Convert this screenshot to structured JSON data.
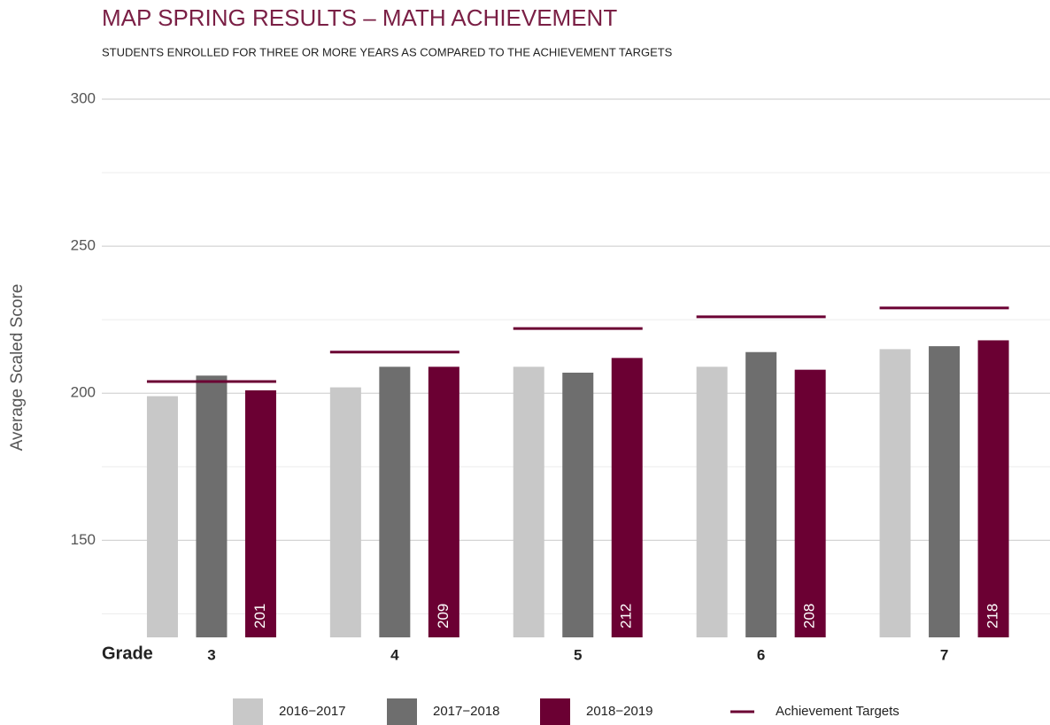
{
  "chart_data": {
    "type": "bar",
    "title": "MAP SPRING RESULTS – MATH ACHIEVEMENT",
    "subtitle": "STUDENTS ENROLLED FOR THREE OR MORE YEARS AS COMPARED TO THE ACHIEVEMENT TARGETS",
    "ylabel": "Average Scaled Score",
    "xlabel": "Grade",
    "categories": [
      "3",
      "4",
      "5",
      "6",
      "7"
    ],
    "series": [
      {
        "name": "2016−2017",
        "color": "#c8c8c8",
        "values": [
          199,
          202,
          209,
          209,
          215
        ]
      },
      {
        "name": "2017−2018",
        "color": "#6e6e6e",
        "values": [
          206,
          209,
          207,
          214,
          216
        ]
      },
      {
        "name": "2018−2019",
        "color": "#6b0033",
        "values": [
          201,
          209,
          212,
          208,
          218
        ],
        "show_labels": true
      }
    ],
    "targets": {
      "name": "Achievement Targets",
      "color": "#6b0033",
      "values": [
        204,
        214,
        222,
        226,
        229
      ]
    },
    "ylim": [
      117,
      300
    ],
    "yticks": [
      150,
      200,
      250,
      300
    ],
    "minor_yticks": [
      125,
      175,
      225,
      275
    ],
    "grid": true
  }
}
